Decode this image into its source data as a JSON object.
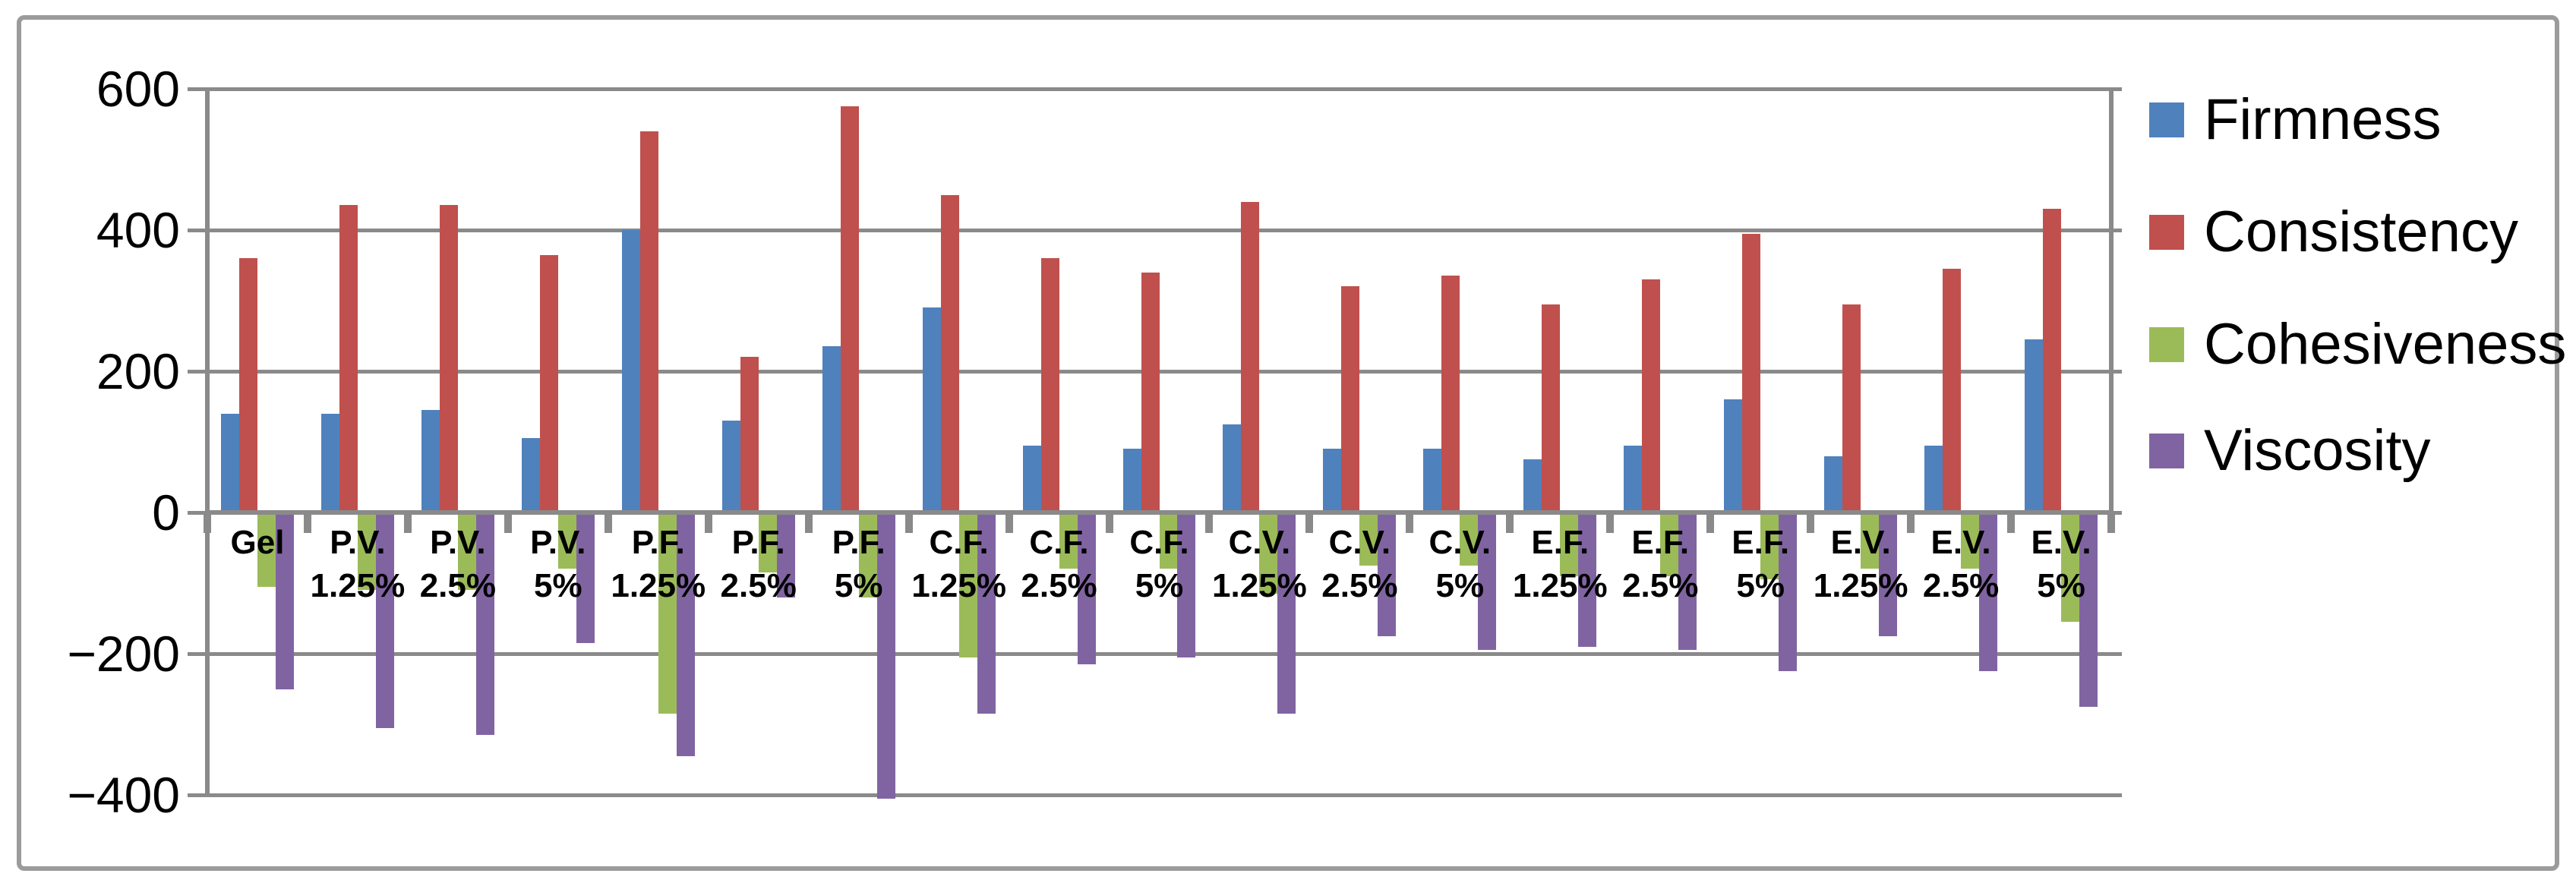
{
  "chart_data": {
    "type": "bar",
    "title": "",
    "xlabel": "",
    "ylabel": "",
    "categories": [
      "Gel",
      "P.V. 1.25%",
      "P.V. 2.5%",
      "P.V. 5%",
      "P.F. 1.25%",
      "P.F. 2.5%",
      "P.F. 5%",
      "C.F. 1.25%",
      "C.F. 2.5%",
      "C.F. 5%",
      "C.V. 1.25%",
      "C.V. 2.5%",
      "C.V. 5%",
      "E.F. 1.25%",
      "E.F. 2.5%",
      "E.F. 5%",
      "E.V. 1.25%",
      "E.V. 2.5%",
      "E.V. 5%"
    ],
    "category_label_lines": [
      [
        "Gel"
      ],
      [
        "P.V.",
        "1.25%"
      ],
      [
        "P.V.",
        "2.5%"
      ],
      [
        "P.V.",
        "5%"
      ],
      [
        "P.F.",
        "1.25%"
      ],
      [
        "P.F.",
        "2.5%"
      ],
      [
        "P.F.",
        "5%"
      ],
      [
        "C.F.",
        "1.25%"
      ],
      [
        "C.F.",
        "2.5%"
      ],
      [
        "C.F.",
        "5%"
      ],
      [
        "C.V.",
        "1.25%"
      ],
      [
        "C.V.",
        "2.5%"
      ],
      [
        "C.V.",
        "5%"
      ],
      [
        "E.F.",
        "1.25%"
      ],
      [
        "E.F.",
        "2.5%"
      ],
      [
        "E.F.",
        "5%"
      ],
      [
        "E.V.",
        "1.25%"
      ],
      [
        "E.V.",
        "2.5%"
      ],
      [
        "E.V.",
        "5%"
      ]
    ],
    "series": [
      {
        "name": "Firmness",
        "color": "#4F81BD",
        "values": [
          140,
          140,
          145,
          105,
          400,
          130,
          235,
          290,
          95,
          90,
          125,
          90,
          90,
          75,
          95,
          160,
          80,
          95,
          245
        ]
      },
      {
        "name": "Consistency",
        "color": "#C0504D",
        "values": [
          360,
          435,
          435,
          365,
          540,
          220,
          575,
          450,
          360,
          340,
          440,
          320,
          335,
          295,
          330,
          395,
          295,
          345,
          430
        ]
      },
      {
        "name": "Cohesiveness",
        "color": "#9BBB59",
        "values": [
          -105,
          -110,
          -110,
          -80,
          -285,
          -85,
          -120,
          -205,
          -80,
          -80,
          -115,
          -75,
          -75,
          -90,
          -90,
          -95,
          -80,
          -80,
          -155
        ]
      },
      {
        "name": "Viscosity",
        "color": "#8064A2",
        "values": [
          -250,
          -305,
          -315,
          -185,
          -345,
          -120,
          -405,
          -285,
          -215,
          -205,
          -285,
          -175,
          -195,
          -190,
          -195,
          -225,
          -175,
          -225,
          -275
        ]
      }
    ],
    "ylim": [
      -400,
      600
    ],
    "yticks": [
      600,
      400,
      200,
      0,
      -200,
      -400
    ],
    "ytick_labels": [
      "600",
      "400",
      "200",
      "0",
      "−200",
      "−400"
    ],
    "grid": true,
    "legend_position": "right",
    "axis_color": "#8a8a8a",
    "text_color": "#000000"
  }
}
